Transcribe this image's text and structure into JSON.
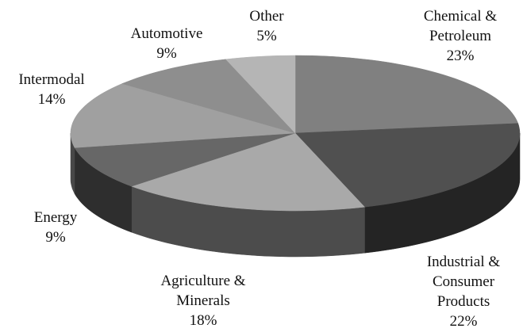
{
  "chart_data": {
    "type": "pie3d",
    "categories": [
      "Chemical & Petroleum",
      "Industrial & Consumer Products",
      "Agriculture & Minerals",
      "Energy",
      "Intermodal",
      "Automotive",
      "Other"
    ],
    "values": [
      23,
      22,
      18,
      9,
      14,
      9,
      5
    ],
    "value_labels": [
      "23%",
      "22%",
      "18%",
      "9%",
      "14%",
      "9%",
      "5%"
    ],
    "colors": [
      "#808080",
      "#505050",
      "#a9a9a9",
      "#676767",
      "#a0a0a0",
      "#8e8e8e",
      "#b5b5b5"
    ]
  }
}
